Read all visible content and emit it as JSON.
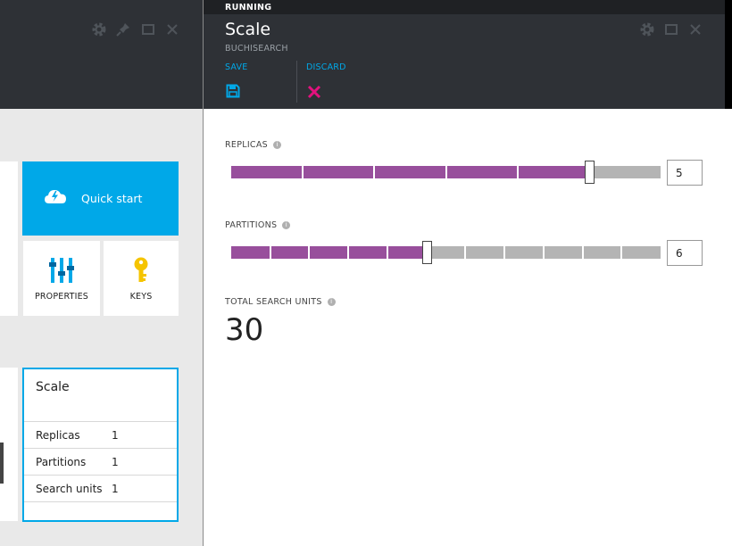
{
  "left_blade": {
    "tiles": {
      "quick_start": "Quick start",
      "properties": "PROPERTIES",
      "keys": "KEYS"
    },
    "scale_tile": {
      "title": "Scale",
      "rows": [
        {
          "label": "Replicas",
          "value": "1"
        },
        {
          "label": "Partitions",
          "value": "1"
        },
        {
          "label": "Search units",
          "value": "1"
        }
      ]
    },
    "header_icons": [
      "gear-icon",
      "pin-icon",
      "maximize-icon",
      "close-icon"
    ]
  },
  "scale_blade": {
    "status": "RUNNING",
    "title": "Scale",
    "subtitle": "BUCHISEARCH",
    "commands": {
      "save_label": "SAVE",
      "discard_label": "DISCARD"
    },
    "replicas": {
      "label": "REPLICAS",
      "value": "5",
      "max": 6
    },
    "partitions": {
      "label": "PARTITIONS",
      "value": "6",
      "steps": [
        "1",
        "2",
        "3",
        "4",
        "6",
        "12"
      ],
      "selected_index": 4
    },
    "total": {
      "label": "TOTAL SEARCH UNITS",
      "value": "30"
    }
  },
  "colors": {
    "accent_blue": "#00a8e8",
    "slider_fill": "#984f9c",
    "slider_track": "#b4b4b4",
    "discard_pink": "#e3127e",
    "header_dark": "#2e3136"
  }
}
